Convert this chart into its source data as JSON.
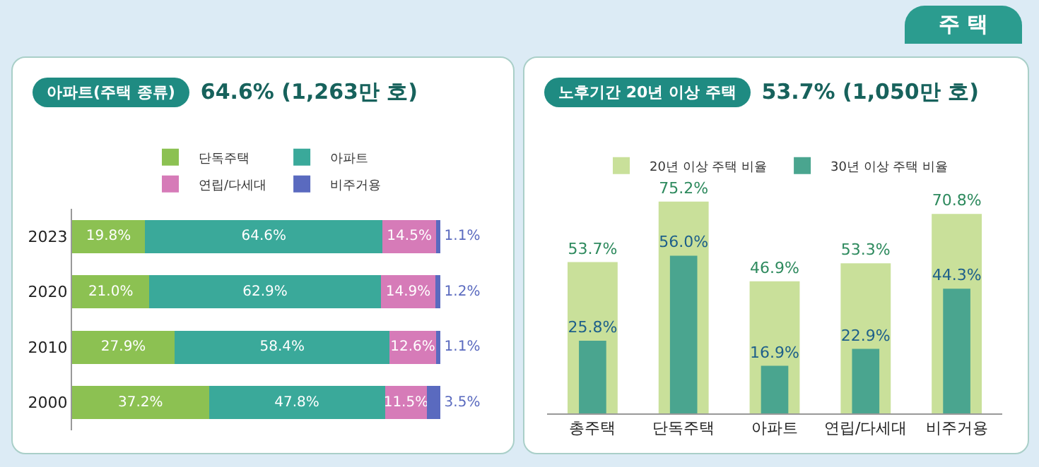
{
  "chart_data": [
    {
      "type": "bar",
      "orientation": "horizontal",
      "stacked": true,
      "title": "아파트(주택 종류)",
      "subtitle": "64.6% (1,263만 호)",
      "categories": [
        "2023",
        "2020",
        "2010",
        "2000"
      ],
      "legend": "top",
      "tick_labels": "y",
      "series": [
        {
          "name": "단독주택",
          "color": "#8cc152",
          "values": [
            19.8,
            21.0,
            27.9,
            37.2
          ],
          "value_labels": [
            "19.8%",
            "21.0%",
            "27.9%",
            "37.2%"
          ]
        },
        {
          "name": "아파트",
          "color": "#3aa99a",
          "values": [
            64.6,
            62.9,
            58.4,
            47.8
          ],
          "value_labels": [
            "64.6%",
            "62.9%",
            "58.4%",
            "47.8%"
          ]
        },
        {
          "name": "연립/다세대",
          "color": "#d67bb8",
          "values": [
            14.5,
            14.9,
            12.6,
            11.5
          ],
          "value_labels": [
            "14.5%",
            "14.9%",
            "12.6%",
            "11.5%"
          ]
        },
        {
          "name": "비주거용",
          "color": "#5a6abf",
          "values": [
            1.1,
            1.2,
            1.1,
            3.5
          ],
          "value_labels": [
            "1.1%",
            "1.2%",
            "1.1%",
            "3.5%"
          ]
        }
      ]
    },
    {
      "type": "bar",
      "title": "노후기간 20년 이상 주택",
      "subtitle": "53.7% (1,050만 호)",
      "categories": [
        "총주택",
        "단독주택",
        "아파트",
        "연립/다세대",
        "비주거용"
      ],
      "legend": "top",
      "tick_labels": "x",
      "annotations": [
        "주 택"
      ],
      "series": [
        {
          "name": "20년 이상 주택 비율",
          "color": "#c9e09a",
          "values": [
            53.7,
            75.2,
            46.9,
            53.3,
            70.8
          ],
          "value_labels": [
            "53.7%",
            "75.2%",
            "46.9%",
            "53.3%",
            "70.8%"
          ]
        },
        {
          "name": "30년 이상 주택 비율",
          "color": "#4aa58f",
          "values": [
            25.8,
            56.0,
            16.9,
            22.9,
            44.3
          ],
          "value_labels": [
            "25.8%",
            "56.0%",
            "16.9%",
            "22.9%",
            "44.3%"
          ]
        }
      ]
    }
  ]
}
